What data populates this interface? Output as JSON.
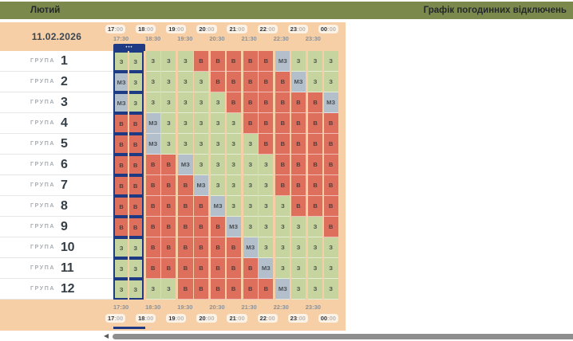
{
  "header": {
    "month_label": "Лютий",
    "app_title": "Графік погодинних відключень"
  },
  "schedule": {
    "date": "11.02.2026",
    "hour_labels": [
      "17:00",
      "18:00",
      "19:00",
      "20:00",
      "21:00",
      "22:00",
      "23:00",
      "00:00"
    ],
    "half_hour_labels": [
      "17:30",
      "18:30",
      "19:30",
      "20:30",
      "21:30",
      "22:30",
      "23:30"
    ],
    "current_slot": {
      "pair_index": 0,
      "marker": "•••"
    },
    "group_word": "ГРУПА",
    "cell_states": {
      "З": "on",
      "В": "off",
      "МЗ": "maybe"
    },
    "groups": [
      {
        "number": "1",
        "cells": [
          "З",
          "З",
          "З",
          "З",
          "З",
          "В",
          "В",
          "В",
          "В",
          "В",
          "МЗ",
          "З",
          "З",
          "З"
        ]
      },
      {
        "number": "2",
        "cells": [
          "МЗ",
          "З",
          "З",
          "З",
          "З",
          "З",
          "В",
          "В",
          "В",
          "В",
          "В",
          "МЗ",
          "З",
          "З"
        ]
      },
      {
        "number": "3",
        "cells": [
          "МЗ",
          "З",
          "З",
          "З",
          "З",
          "З",
          "З",
          "В",
          "В",
          "В",
          "В",
          "В",
          "В",
          "МЗ"
        ]
      },
      {
        "number": "4",
        "cells": [
          "В",
          "В",
          "МЗ",
          "З",
          "З",
          "З",
          "З",
          "З",
          "В",
          "В",
          "В",
          "В",
          "В",
          "В"
        ]
      },
      {
        "number": "5",
        "cells": [
          "В",
          "В",
          "МЗ",
          "З",
          "З",
          "З",
          "З",
          "З",
          "З",
          "В",
          "В",
          "В",
          "В",
          "В"
        ]
      },
      {
        "number": "6",
        "cells": [
          "В",
          "В",
          "В",
          "В",
          "МЗ",
          "З",
          "З",
          "З",
          "З",
          "З",
          "В",
          "В",
          "В",
          "В"
        ]
      },
      {
        "number": "7",
        "cells": [
          "В",
          "В",
          "В",
          "В",
          "В",
          "МЗ",
          "З",
          "З",
          "З",
          "З",
          "В",
          "В",
          "В",
          "В"
        ]
      },
      {
        "number": "8",
        "cells": [
          "В",
          "В",
          "В",
          "В",
          "В",
          "В",
          "МЗ",
          "З",
          "З",
          "З",
          "З",
          "В",
          "В",
          "В"
        ]
      },
      {
        "number": "9",
        "cells": [
          "В",
          "В",
          "В",
          "В",
          "В",
          "В",
          "В",
          "МЗ",
          "З",
          "З",
          "З",
          "З",
          "З",
          "В"
        ]
      },
      {
        "number": "10",
        "cells": [
          "З",
          "З",
          "В",
          "В",
          "В",
          "В",
          "В",
          "В",
          "МЗ",
          "З",
          "З",
          "З",
          "З",
          "З"
        ]
      },
      {
        "number": "11",
        "cells": [
          "З",
          "З",
          "В",
          "В",
          "В",
          "В",
          "В",
          "В",
          "В",
          "МЗ",
          "З",
          "З",
          "З",
          "З"
        ]
      },
      {
        "number": "12",
        "cells": [
          "З",
          "З",
          "З",
          "З",
          "В",
          "В",
          "В",
          "В",
          "В",
          "В",
          "МЗ",
          "З",
          "З",
          "З"
        ]
      }
    ]
  },
  "colors": {
    "on": "#c6d5a0",
    "off": "#de6f5d",
    "maybe": "#b3c0cb",
    "accent_navy": "#1e3a85",
    "peach": "#f6cfa7",
    "olive": "#7b8a4c"
  },
  "scrollbar": {
    "left_arrow": "◀"
  }
}
